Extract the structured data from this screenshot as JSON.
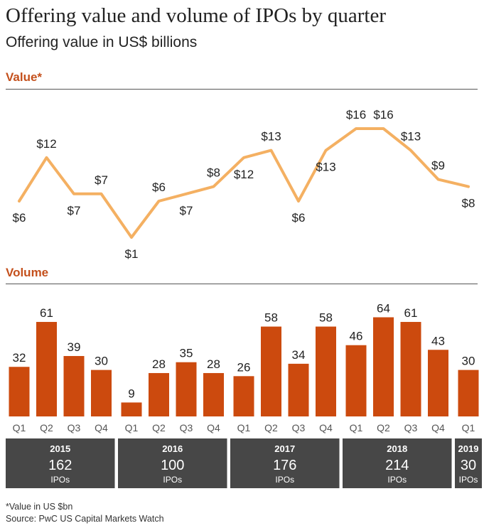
{
  "header": {
    "title": "Offering value and volume of IPOs by quarter",
    "subtitle": "Offering value in US$ billions"
  },
  "sections": {
    "value_label": "Value*",
    "volume_label": "Volume"
  },
  "footer": {
    "note": "*Value in US $bn",
    "source": "Source: PwC US Capital Markets Watch"
  },
  "colors": {
    "line": "#f4b062",
    "bar": "#cc4a0e",
    "year_box": "#474747",
    "accent_text": "#c4501c"
  },
  "chart_data": [
    {
      "type": "line",
      "title": "Value*",
      "x": [
        "Q1",
        "Q2",
        "Q3",
        "Q4",
        "Q1",
        "Q2",
        "Q3",
        "Q4",
        "Q1",
        "Q2",
        "Q3",
        "Q4",
        "Q1",
        "Q2",
        "Q3",
        "Q4",
        "Q1"
      ],
      "values": [
        6,
        12,
        7,
        7,
        1,
        6,
        7,
        8,
        12,
        13,
        6,
        13,
        16,
        16,
        13,
        9,
        8
      ],
      "labels": [
        "$6",
        "$12",
        "$7",
        "$7",
        "$1",
        "$6",
        "$7",
        "$8",
        "$12",
        "$13",
        "$6",
        "$13",
        "$16",
        "$16",
        "$13",
        "$9",
        "$8"
      ],
      "label_pos": [
        "below",
        "above",
        "below",
        "above",
        "below",
        "above",
        "below",
        "above",
        "below",
        "above",
        "below",
        "below",
        "above",
        "above",
        "above",
        "above",
        "below"
      ]
    },
    {
      "type": "bar",
      "title": "Volume",
      "categories": [
        "Q1",
        "Q2",
        "Q3",
        "Q4",
        "Q1",
        "Q2",
        "Q3",
        "Q4",
        "Q1",
        "Q2",
        "Q3",
        "Q4",
        "Q1",
        "Q2",
        "Q3",
        "Q4",
        "Q1"
      ],
      "values": [
        32,
        61,
        39,
        30,
        9,
        28,
        35,
        28,
        26,
        58,
        34,
        58,
        46,
        64,
        61,
        43,
        30
      ],
      "groups": [
        {
          "year": "2015",
          "total": "162",
          "unit": "IPOs"
        },
        {
          "year": "2016",
          "total": "100",
          "unit": "IPOs"
        },
        {
          "year": "2017",
          "total": "176",
          "unit": "IPOs"
        },
        {
          "year": "2018",
          "total": "214",
          "unit": "IPOs"
        },
        {
          "year": "2019",
          "total": "30",
          "unit": "IPOs"
        }
      ]
    }
  ]
}
